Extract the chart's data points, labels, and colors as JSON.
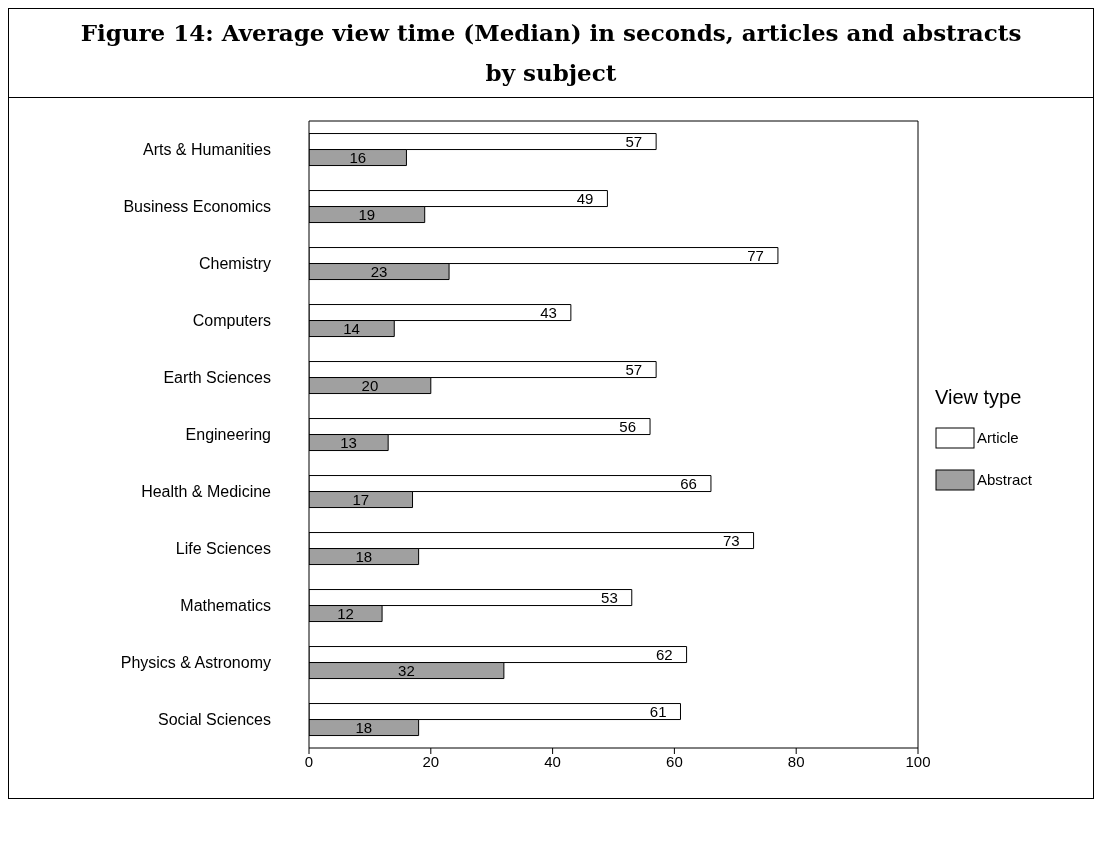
{
  "chart_data": {
    "type": "bar",
    "orientation": "horizontal",
    "title": "Figure 14: Average view time (Median) in seconds, articles and abstracts by subject",
    "categories": [
      "Arts & Humanities",
      "Business Economics",
      "Chemistry",
      "Computers",
      "Earth Sciences",
      "Engineering",
      "Health & Medicine",
      "Life Sciences",
      "Mathematics",
      "Physics & Astronomy",
      "Social Sciences"
    ],
    "series": [
      {
        "name": "Article",
        "color": "#ffffff",
        "values": [
          57,
          49,
          77,
          43,
          57,
          56,
          66,
          73,
          53,
          62,
          61
        ]
      },
      {
        "name": "Abstract",
        "color": "#a0a0a0",
        "values": [
          16,
          19,
          23,
          14,
          20,
          13,
          17,
          18,
          12,
          32,
          18
        ]
      }
    ],
    "xlim": [
      0,
      100
    ],
    "xticks": [
      0,
      20,
      40,
      60,
      80,
      100
    ],
    "grid": false,
    "legend": "right",
    "legend_title": "View type",
    "data_labels": true
  }
}
